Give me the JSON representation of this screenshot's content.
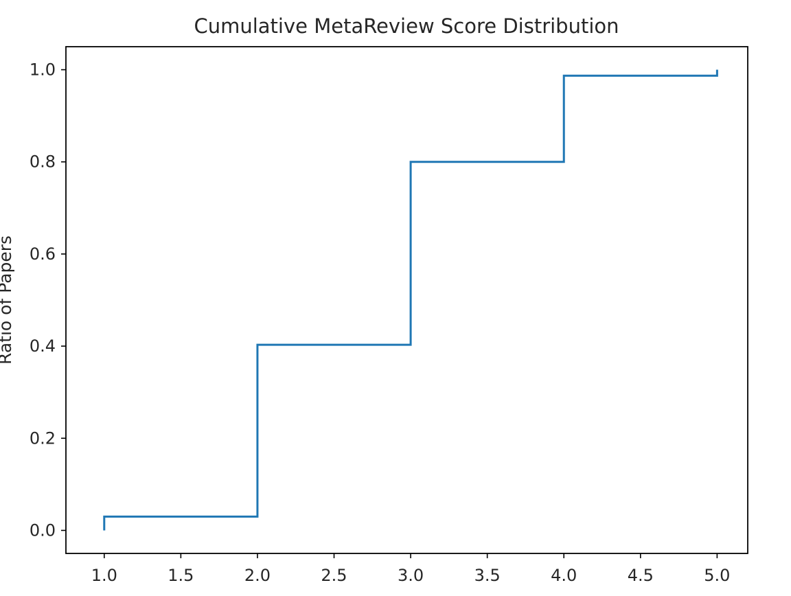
{
  "chart_data": {
    "type": "line",
    "title": "Cumulative MetaReview Score Distribution",
    "xlabel": "",
    "ylabel": "Ratio of Papers",
    "xlim": [
      0.75,
      5.2
    ],
    "ylim": [
      -0.05,
      1.05
    ],
    "x_ticks": [
      "1.0",
      "1.5",
      "2.0",
      "2.5",
      "3.0",
      "3.5",
      "4.0",
      "4.5",
      "5.0"
    ],
    "y_ticks": [
      "0.0",
      "0.2",
      "0.4",
      "0.6",
      "0.8",
      "1.0"
    ],
    "grid": false,
    "series": [
      {
        "color": "#1f77b4",
        "step": "post",
        "x": [
          1.0,
          1.0,
          2.0,
          3.0,
          4.0,
          5.0,
          5.0
        ],
        "y": [
          0.0,
          0.03,
          0.403,
          0.8,
          0.987,
          0.987,
          1.0
        ]
      }
    ]
  }
}
